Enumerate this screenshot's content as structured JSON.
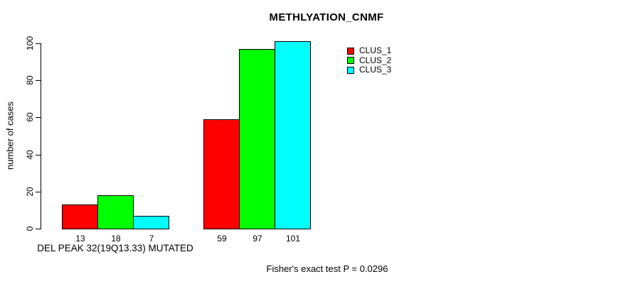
{
  "chart_data": {
    "type": "bar",
    "title": "METHLYATION_CNMF",
    "ylabel": "number of cases",
    "xlabel": "DEL PEAK 32(19Q13.33) MUTATED",
    "footer": "Fisher's exact test P = 0.0296",
    "ylim": [
      0,
      100
    ],
    "yticks": [
      0,
      20,
      40,
      60,
      80,
      100
    ],
    "grid": false,
    "legend_position": "top-right",
    "bar_border_color": "#000000",
    "background_color": "#ffffff",
    "groups": [
      {
        "label": "DEL PEAK 32(19Q13.33) MUTATED",
        "values": [
          13,
          18,
          7
        ]
      },
      {
        "label": "",
        "values": [
          59,
          97,
          101
        ]
      }
    ],
    "series": [
      {
        "name": "CLUS_1",
        "color": "#ff0000",
        "values": [
          13,
          59
        ]
      },
      {
        "name": "CLUS_2",
        "color": "#00ff00",
        "values": [
          18,
          97
        ]
      },
      {
        "name": "CLUS_3",
        "color": "#00ffff",
        "values": [
          7,
          101
        ]
      }
    ]
  }
}
